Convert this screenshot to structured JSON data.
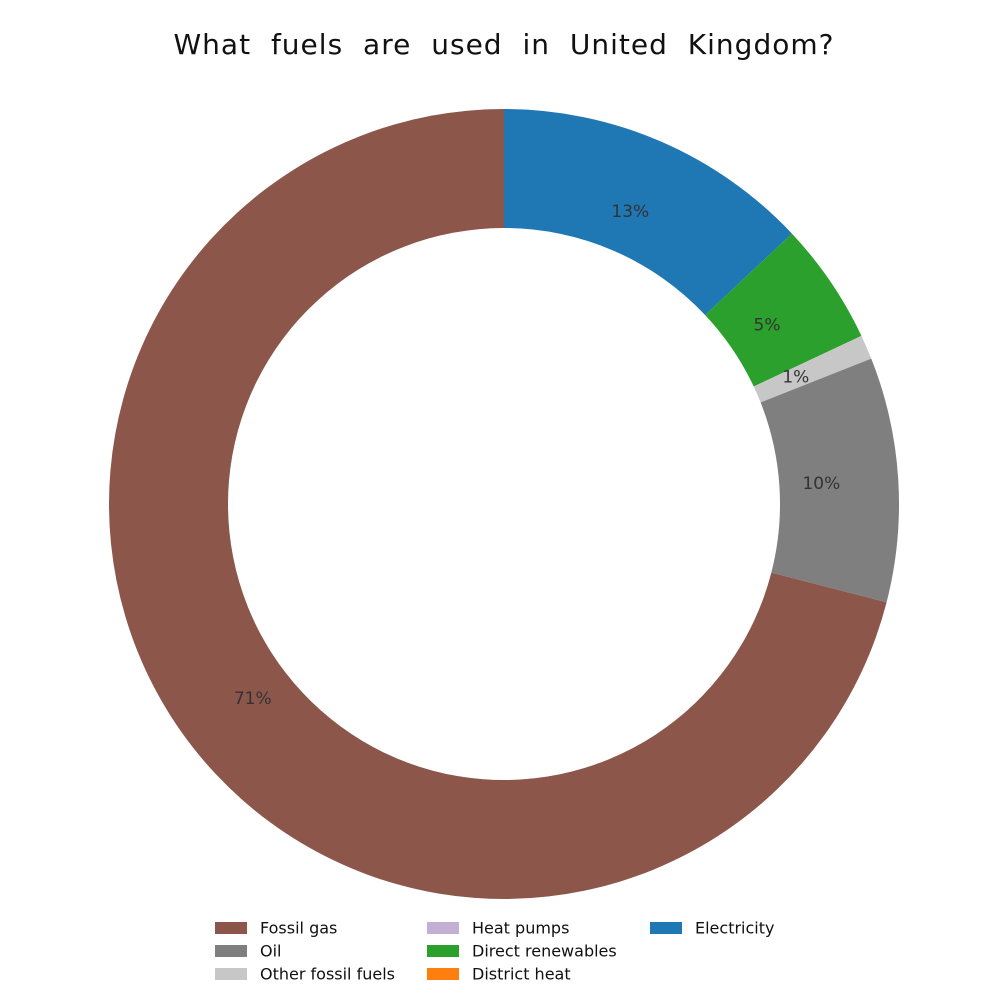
{
  "chart_data": {
    "type": "pie",
    "donut": true,
    "title": "What fuels are used in United Kingdom?",
    "start": "top",
    "direction": "clockwise",
    "slices": [
      {
        "label": "Electricity",
        "value": 13,
        "value_label": "13%",
        "color": "#1f77b4"
      },
      {
        "label": "Direct renewables",
        "value": 5,
        "value_label": "5%",
        "color": "#2ca02c"
      },
      {
        "label": "Other fossil fuels",
        "value": 1,
        "value_label": "1%",
        "color": "#c7c7c7"
      },
      {
        "label": "Oil",
        "value": 10,
        "value_label": "10%",
        "color": "#7f7f7f"
      },
      {
        "label": "Fossil gas",
        "value": 71,
        "value_label": "71%",
        "color": "#8c564b"
      }
    ],
    "legend": {
      "position": "bottom",
      "items": [
        {
          "label": "Fossil gas",
          "color": "#8c564b"
        },
        {
          "label": "Oil",
          "color": "#7f7f7f"
        },
        {
          "label": "Other fossil fuels",
          "color": "#c7c7c7"
        },
        {
          "label": "Heat pumps",
          "color": "#c5b0d5"
        },
        {
          "label": "Direct renewables",
          "color": "#2ca02c"
        },
        {
          "label": "District heat",
          "color": "#ff7f0e"
        },
        {
          "label": "Electricity",
          "color": "#1f77b4"
        }
      ]
    }
  }
}
